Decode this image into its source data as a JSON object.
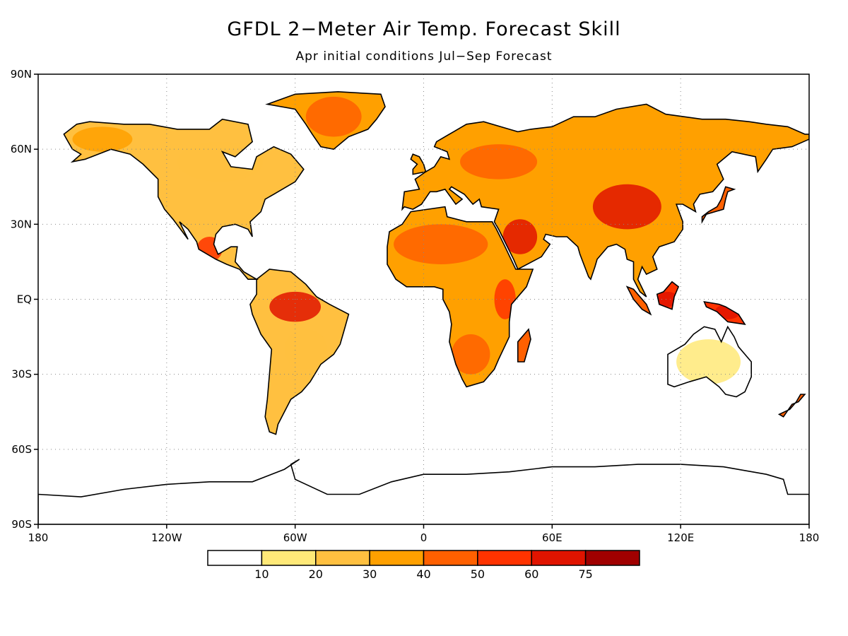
{
  "title": "GFDL 2−Meter Air Temp. Forecast Skill",
  "subtitle": "Apr initial conditions   Jul−Sep Forecast",
  "map": {
    "projection": "cylindrical-equidistant",
    "lon_range": [
      -180,
      180
    ],
    "lat_range": [
      -90,
      90
    ],
    "grid": "dotted",
    "lat_ticks": [
      {
        "value": 90,
        "label": "90N"
      },
      {
        "value": 60,
        "label": "60N"
      },
      {
        "value": 30,
        "label": "30N"
      },
      {
        "value": 0,
        "label": "EQ"
      },
      {
        "value": -30,
        "label": "30S"
      },
      {
        "value": -60,
        "label": "60S"
      },
      {
        "value": -90,
        "label": "90S"
      }
    ],
    "lon_ticks": [
      {
        "value": -180,
        "label": "180"
      },
      {
        "value": -120,
        "label": "120W"
      },
      {
        "value": -60,
        "label": "60W"
      },
      {
        "value": 0,
        "label": "0"
      },
      {
        "value": 60,
        "label": "60E"
      },
      {
        "value": 120,
        "label": "120E"
      },
      {
        "value": 180,
        "label": "180"
      }
    ]
  },
  "colorbar": {
    "colors": [
      "#ffffff",
      "#ffe978",
      "#ffc040",
      "#ffa000",
      "#ff6000",
      "#ff3300",
      "#e01400",
      "#a00000"
    ],
    "labels": [
      "10",
      "20",
      "30",
      "40",
      "50",
      "60",
      "75"
    ]
  },
  "skill_regions": [
    {
      "name": "greenland",
      "color": "#ff6000",
      "lon": -42,
      "lat": 73,
      "rx": 13,
      "ry": 8
    },
    {
      "name": "amazon",
      "color": "#e01400",
      "lon": -60,
      "lat": -3,
      "rx": 12,
      "ry": 6
    },
    {
      "name": "sahara",
      "color": "#ff6000",
      "lon": 8,
      "lat": 22,
      "rx": 22,
      "ry": 8
    },
    {
      "name": "arabia",
      "color": "#e01400",
      "lon": 45,
      "lat": 25,
      "rx": 8,
      "ry": 7
    },
    {
      "name": "central-asia",
      "color": "#e01400",
      "lon": 95,
      "lat": 37,
      "rx": 16,
      "ry": 9
    },
    {
      "name": "siberia",
      "color": "#ffa000",
      "lon": 100,
      "lat": 62,
      "rx": 40,
      "ry": 8
    },
    {
      "name": "europe",
      "color": "#ff6000",
      "lon": 35,
      "lat": 55,
      "rx": 18,
      "ry": 7
    },
    {
      "name": "mexico",
      "color": "#ff3300",
      "lon": -100,
      "lat": 20,
      "rx": 6,
      "ry": 5
    },
    {
      "name": "east-africa",
      "color": "#ff3300",
      "lon": 38,
      "lat": 0,
      "rx": 5,
      "ry": 8
    },
    {
      "name": "borneo",
      "color": "#e01400",
      "lon": 114,
      "lat": 0,
      "rx": 5,
      "ry": 3
    },
    {
      "name": "new-guinea",
      "color": "#e01400",
      "lon": 142,
      "lat": -5,
      "rx": 6,
      "ry": 3
    },
    {
      "name": "southern-africa",
      "color": "#ff6000",
      "lon": 22,
      "lat": -22,
      "rx": 9,
      "ry": 8
    },
    {
      "name": "alaska",
      "color": "#ffa000",
      "lon": -150,
      "lat": 64,
      "rx": 14,
      "ry": 5
    },
    {
      "name": "canada",
      "color": "#ffc040",
      "lon": -95,
      "lat": 55,
      "rx": 20,
      "ry": 8
    },
    {
      "name": "south-brazil",
      "color": "#ffc040",
      "lon": -55,
      "lat": -20,
      "rx": 10,
      "ry": 8
    },
    {
      "name": "australia",
      "color": "#ffe978",
      "lon": 133,
      "lat": -25,
      "rx": 15,
      "ry": 9
    }
  ]
}
